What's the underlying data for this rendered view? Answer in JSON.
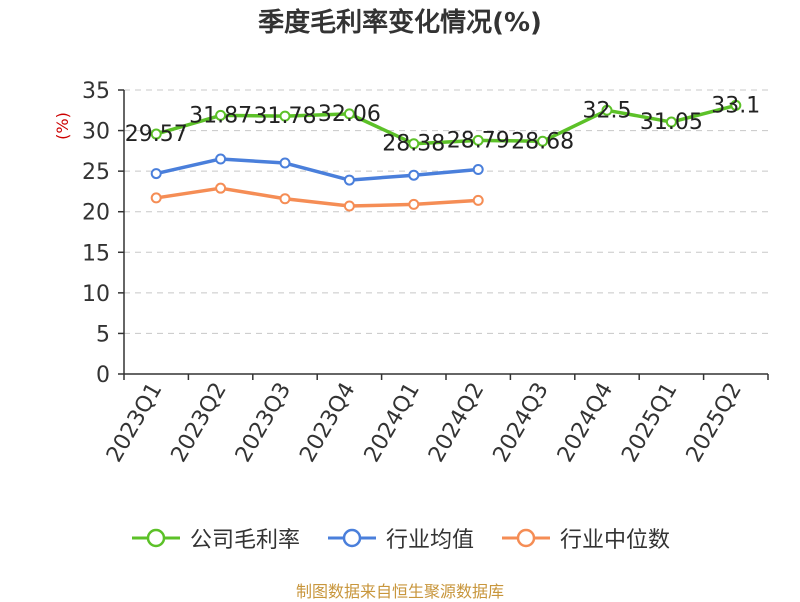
{
  "chart_data": {
    "type": "line",
    "title": "季度毛利率变化情况(%)",
    "ylabel": "(%)",
    "xlabel": "",
    "ylim": [
      0,
      35
    ],
    "yticks": [
      0,
      5,
      10,
      15,
      20,
      25,
      30,
      35
    ],
    "grid": true,
    "legend_position": "bottom",
    "categories": [
      "2023Q1",
      "2023Q2",
      "2023Q3",
      "2023Q4",
      "2024Q1",
      "2024Q2",
      "2024Q3",
      "2024Q4",
      "2025Q1",
      "2025Q2"
    ],
    "series": [
      {
        "name": "公司毛利率",
        "color": "#5cc128",
        "show_labels": true,
        "values": [
          29.57,
          31.87,
          31.78,
          32.06,
          28.38,
          28.79,
          28.68,
          32.5,
          31.05,
          33.1
        ],
        "labels": [
          "29.57",
          "31.87",
          "31.78",
          "32.06",
          "28.38",
          "28.79",
          "28.68",
          "32.5",
          "31.05",
          "33.1"
        ]
      },
      {
        "name": "行业均值",
        "color": "#4a7fdb",
        "show_labels": false,
        "values": [
          24.7,
          26.5,
          26.0,
          23.9,
          24.5,
          25.2,
          null,
          null,
          null,
          null
        ]
      },
      {
        "name": "行业中位数",
        "color": "#f58d55",
        "show_labels": false,
        "values": [
          21.7,
          22.9,
          21.6,
          20.7,
          20.9,
          21.4,
          null,
          null,
          null,
          null
        ]
      }
    ]
  },
  "footer": {
    "source": "制图数据来自恒生聚源数据库"
  }
}
